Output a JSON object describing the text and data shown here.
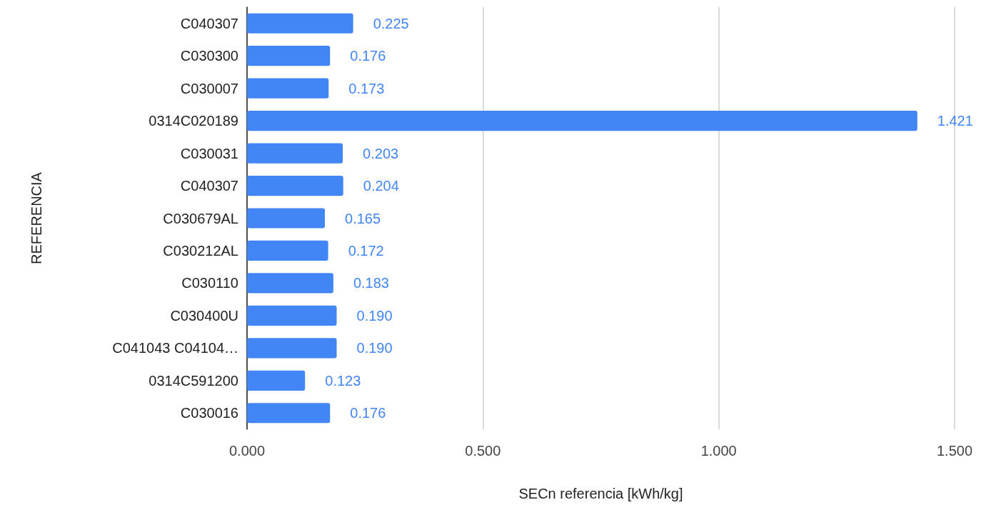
{
  "chart_data": {
    "type": "bar",
    "orientation": "horizontal",
    "xlabel": "SECn referencia [kWh/kg]",
    "ylabel": "REFERENCIA",
    "categories": [
      "C040307",
      "C030300",
      "C030007",
      "0314C020189",
      "C030031",
      "C040307",
      "C030679AL",
      "C030212AL",
      "C030110",
      "C030400U",
      "C041043 C04104…",
      "0314C591200",
      "C030016"
    ],
    "values": [
      0.225,
      0.176,
      0.173,
      1.421,
      0.203,
      0.204,
      0.165,
      0.172,
      0.183,
      0.19,
      0.19,
      0.123,
      0.176
    ],
    "value_labels": [
      "0.225",
      "0.176",
      "0.173",
      "1.421",
      "0.203",
      "0.204",
      "0.165",
      "0.172",
      "0.183",
      "0.190",
      "0.190",
      "0.123",
      "0.176"
    ],
    "color": "#4285f4",
    "xlim": [
      0,
      1.5
    ],
    "xticks": [
      {
        "value": 0,
        "label": "0.000"
      },
      {
        "value": 0.5,
        "label": "0.500"
      },
      {
        "value": 1,
        "label": "1.000"
      },
      {
        "value": 1.5,
        "label": "1.500"
      }
    ],
    "grid": "x"
  }
}
